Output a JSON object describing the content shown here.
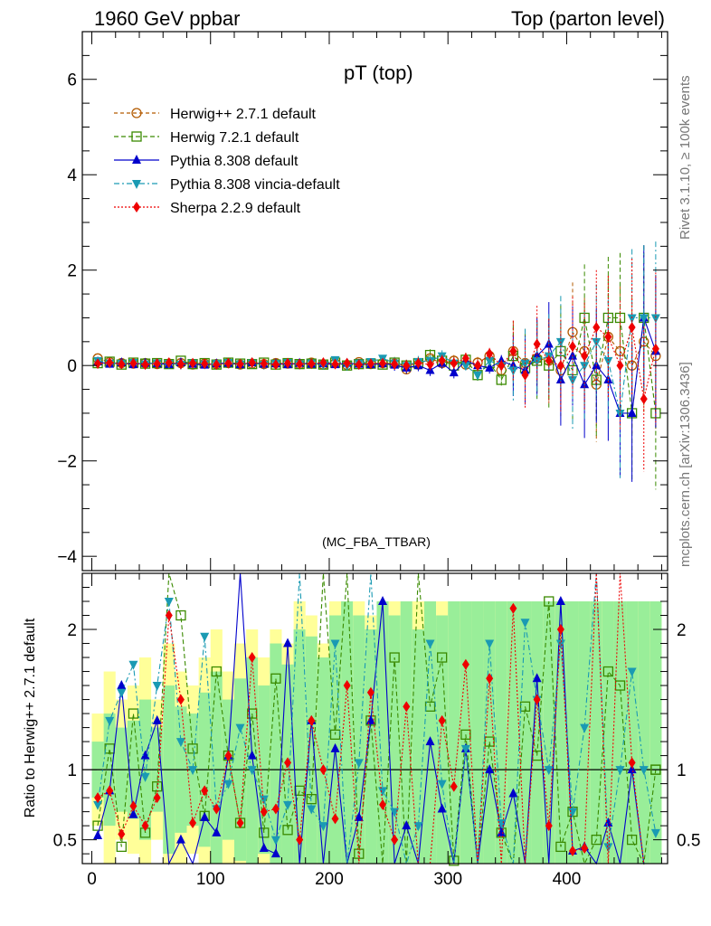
{
  "header": {
    "left": "1960 GeV ppbar",
    "right": "Top (parton level)"
  },
  "side": {
    "rivet": "Rivet 3.1.10, ≥ 100k events",
    "mcplots": "mcplots.cern.ch [arXiv:1306.3436]"
  },
  "chart_data": {
    "type": "line",
    "title": "pT (top)",
    "watermark": "(MC_FBA_TTBAR)",
    "ratio_ylabel": "Ratio to Herwig++ 2.7.1 default",
    "xlim": [
      -8,
      485
    ],
    "ylim_main": [
      -4.3,
      7.0
    ],
    "ylim_ratio": [
      0.33,
      2.4
    ],
    "x_ticks": [
      0,
      100,
      200,
      300,
      400
    ],
    "y_ticks_main": [
      -4,
      -2,
      0,
      2,
      4,
      6
    ],
    "y_ticks_ratio": [
      0.5,
      1,
      2
    ],
    "legend_position": "top-left",
    "series": [
      {
        "name": "Herwig++ 2.7.1 default",
        "color": "#b35a00",
        "marker": "circle-open",
        "dash": "4,3",
        "x": [
          5,
          15,
          25,
          35,
          45,
          55,
          65,
          75,
          85,
          95,
          105,
          115,
          125,
          135,
          145,
          155,
          165,
          175,
          185,
          195,
          205,
          215,
          225,
          235,
          245,
          255,
          265,
          275,
          285,
          295,
          305,
          315,
          325,
          335,
          345,
          355,
          365,
          375,
          385,
          395,
          405,
          415,
          425,
          435,
          445,
          455,
          465,
          475
        ],
        "y": [
          0.15,
          0.07,
          0.05,
          0.04,
          0.05,
          0.03,
          0.04,
          0.05,
          0.02,
          0.04,
          0.03,
          0.05,
          0.02,
          0.04,
          0.03,
          0.05,
          0.04,
          0.03,
          0.06,
          0.02,
          0.05,
          0.01,
          0.07,
          0.03,
          0.05,
          0.04,
          -0.08,
          0.02,
          0.15,
          0.05,
          0.1,
          0.02,
          0.06,
          0.2,
          -0.1,
          0.3,
          0.05,
          0.15,
          0.1,
          -0.1,
          0.7,
          0.3,
          -0.4,
          0.6,
          0.3,
          0.0,
          0.5,
          0.2
        ]
      },
      {
        "name": "Herwig 7.2.1 default",
        "color": "#3a8a00",
        "marker": "square-open",
        "dash": "5,3",
        "x": [
          5,
          15,
          25,
          35,
          45,
          55,
          65,
          75,
          85,
          95,
          105,
          115,
          125,
          135,
          145,
          155,
          165,
          175,
          185,
          195,
          205,
          215,
          225,
          235,
          245,
          255,
          265,
          275,
          285,
          295,
          305,
          315,
          325,
          335,
          345,
          355,
          365,
          375,
          385,
          395,
          405,
          415,
          425,
          435,
          445,
          455,
          465,
          475
        ],
        "y": [
          0.05,
          0.08,
          0.02,
          0.06,
          0.04,
          0.05,
          0.03,
          0.1,
          0.03,
          0.05,
          0.02,
          0.06,
          0.04,
          0.03,
          0.06,
          0.02,
          0.05,
          0.03,
          0.04,
          0.02,
          0.06,
          0.0,
          0.03,
          0.04,
          0.02,
          0.06,
          0.0,
          0.05,
          0.22,
          0.1,
          0.0,
          0.12,
          -0.2,
          0.05,
          -0.3,
          0.2,
          -0.05,
          0.1,
          0.0,
          0.3,
          -0.1,
          1.0,
          -0.3,
          1.0,
          1.0,
          -1.0,
          1.0,
          -1.0
        ]
      },
      {
        "name": "Pythia 8.308 default",
        "color": "#0000cc",
        "marker": "triangle-up",
        "dash": "",
        "x": [
          5,
          15,
          25,
          35,
          45,
          55,
          65,
          75,
          85,
          95,
          105,
          115,
          125,
          135,
          145,
          155,
          165,
          175,
          185,
          195,
          205,
          215,
          225,
          235,
          245,
          255,
          265,
          275,
          285,
          295,
          305,
          315,
          325,
          335,
          345,
          355,
          365,
          375,
          385,
          395,
          405,
          415,
          425,
          435,
          445,
          455,
          465,
          475
        ],
        "y": [
          0.08,
          0.03,
          0.06,
          0.02,
          0.05,
          0.04,
          0.02,
          0.06,
          0.03,
          0.01,
          0.04,
          0.05,
          0.02,
          0.06,
          0.03,
          0.04,
          0.02,
          0.05,
          0.03,
          0.04,
          0.02,
          0.05,
          0.03,
          0.02,
          0.04,
          0.01,
          -0.05,
          0.0,
          -0.1,
          0.05,
          -0.15,
          0.1,
          0.0,
          -0.05,
          0.1,
          0.0,
          -0.1,
          0.2,
          0.45,
          -0.3,
          0.2,
          -0.4,
          0.0,
          -0.3,
          -1.0,
          -1.0,
          1.0,
          0.3
        ]
      },
      {
        "name": "Pythia 8.308 vincia-default",
        "color": "#1a9ab3",
        "marker": "triangle-down",
        "dash": "6,3,2,3",
        "x": [
          5,
          15,
          25,
          35,
          45,
          55,
          65,
          75,
          85,
          95,
          105,
          115,
          125,
          135,
          145,
          155,
          165,
          175,
          185,
          195,
          205,
          215,
          225,
          235,
          245,
          255,
          265,
          275,
          285,
          295,
          305,
          315,
          325,
          335,
          345,
          355,
          365,
          375,
          385,
          395,
          405,
          415,
          425,
          435,
          445,
          455,
          465,
          475
        ],
        "y": [
          0.1,
          0.05,
          0.04,
          0.06,
          0.03,
          0.05,
          0.04,
          0.02,
          0.05,
          0.03,
          0.04,
          0.06,
          0.03,
          0.05,
          0.02,
          0.04,
          0.06,
          0.03,
          0.05,
          0.02,
          0.12,
          0.0,
          0.05,
          0.08,
          0.15,
          0.05,
          0.0,
          0.08,
          0.1,
          0.2,
          0.05,
          0.0,
          -0.2,
          0.1,
          0.0,
          -0.1,
          0.05,
          0.1,
          0.2,
          0.5,
          -0.3,
          0.0,
          0.5,
          0.1,
          -1.0,
          1.0,
          1.0,
          1.0
        ]
      },
      {
        "name": "Sherpa 2.2.9 default",
        "color": "#ee0000",
        "marker": "diamond",
        "dash": "2,2",
        "x": [
          5,
          15,
          25,
          35,
          45,
          55,
          65,
          75,
          85,
          95,
          105,
          115,
          125,
          135,
          145,
          155,
          165,
          175,
          185,
          195,
          205,
          215,
          225,
          235,
          245,
          255,
          265,
          275,
          285,
          295,
          305,
          315,
          325,
          335,
          345,
          355,
          365,
          375,
          385,
          395,
          405,
          415,
          425,
          435,
          445,
          455,
          465,
          475
        ],
        "y": [
          0.04,
          0.06,
          0.03,
          0.05,
          0.02,
          0.04,
          0.06,
          0.03,
          0.05,
          0.04,
          0.02,
          0.05,
          0.03,
          0.06,
          0.04,
          0.02,
          0.05,
          0.03,
          0.04,
          0.06,
          0.03,
          0.05,
          0.02,
          0.04,
          0.05,
          0.03,
          0.0,
          0.05,
          0.02,
          0.1,
          0.05,
          0.15,
          0.0,
          0.25,
          0.0,
          0.3,
          -0.2,
          0.45,
          0.1,
          0.0,
          0.4,
          0.2,
          0.8,
          0.6,
          0.0,
          0.8,
          -0.7,
          0.35
        ]
      }
    ],
    "ratio": [
      {
        "name": "Herwig++ 2.7.1 default",
        "y": [
          1,
          1,
          1,
          1,
          1,
          1,
          1,
          1,
          1,
          1,
          1,
          1,
          1,
          1,
          1,
          1,
          1,
          1,
          1,
          1,
          1,
          1,
          1,
          1,
          1,
          1,
          1,
          1,
          1,
          1,
          1,
          1,
          1,
          1,
          1,
          1,
          1,
          1,
          1,
          1,
          1,
          1,
          1,
          1,
          1,
          1,
          1,
          1
        ]
      },
      {
        "name": "Herwig 7.2.1 default",
        "y": [
          0.6,
          1.15,
          0.45,
          1.4,
          0.55,
          0.88,
          2.4,
          2.1,
          1.15,
          0.67,
          1.7,
          1.1,
          0.62,
          1.4,
          0.55,
          1.65,
          0.57,
          0.85,
          0.79,
          2.4,
          1.25,
          2.4,
          0.4,
          1.35,
          0.3,
          1.8,
          0.3,
          2.4,
          1.45,
          1.8,
          0.35,
          1.25,
          0.3,
          1.2,
          0.55,
          0.3,
          1.45,
          1.1,
          2.2,
          0.45,
          0.7,
          0.3,
          0.5,
          1.7,
          1.6,
          0.5,
          0.3,
          1.0
        ]
      },
      {
        "name": "Pythia 8.308 default",
        "y": [
          0.53,
          0.85,
          1.6,
          0.68,
          1.1,
          1.35,
          0.2,
          0.5,
          0.3,
          0.66,
          0.55,
          1.1,
          2.4,
          1.1,
          0.44,
          0.4,
          1.9,
          0.3,
          1.35,
          0.3,
          1.15,
          0.3,
          0.66,
          1.35,
          2.2,
          0.3,
          0.6,
          0.3,
          1.2,
          0.72,
          0.3,
          1.15,
          0.3,
          1.0,
          0.55,
          0.83,
          0.3,
          1.65,
          0.3,
          2.2,
          0.42,
          0.45,
          0.3,
          0.62,
          0.3,
          1.0,
          0.3,
          0.3
        ]
      },
      {
        "name": "Pythia 8.308 vincia-default",
        "y": [
          0.75,
          1.35,
          1.55,
          1.75,
          0.95,
          1.6,
          2.2,
          1.2,
          1.0,
          1.95,
          0.72,
          0.9,
          1.3,
          1.0,
          0.79,
          0.5,
          0.75,
          2.4,
          0.72,
          0.6,
          1.9,
          0.3,
          1.05,
          2.4,
          0.85,
          0.7,
          0.3,
          0.6,
          1.9,
          0.9,
          0.3,
          1.15,
          0.3,
          1.9,
          0.62,
          0.3,
          2.05,
          1.5,
          1.0,
          1.9,
          0.7,
          1.3,
          2.4,
          0.45,
          1.0,
          1.7,
          1.0,
          0.55
        ]
      },
      {
        "name": "Sherpa 2.2.9 default",
        "y": [
          0.8,
          0.85,
          0.54,
          0.74,
          0.6,
          0.8,
          2.1,
          1.5,
          0.62,
          0.85,
          0.72,
          1.1,
          0.62,
          1.8,
          0.7,
          0.72,
          1.05,
          0.5,
          1.35,
          1.0,
          0.65,
          1.6,
          0.3,
          1.55,
          0.75,
          0.5,
          1.45,
          0.3,
          0.3,
          1.35,
          0.88,
          1.75,
          0.3,
          1.65,
          0.3,
          2.15,
          0.3,
          1.5,
          0.6,
          2.0,
          0.42,
          0.44,
          2.4,
          0.3,
          2.4,
          1.05,
          0.3,
          0.3
        ]
      }
    ],
    "ratio_bands": {
      "yellow_halfwidth": [
        0.4,
        0.7,
        0.5,
        0.6,
        0.8,
        0.5,
        0.9,
        0.7,
        0.6,
        0.8,
        1.0,
        0.7,
        0.9,
        1.0,
        0.8,
        1.0,
        0.9,
        1.2,
        1.1,
        0.9,
        1.2,
        1.2,
        1.2,
        1.1,
        1.2,
        1.2,
        1.2,
        1.2,
        1.2,
        1.2,
        1.2,
        1.2,
        1.2,
        1.2,
        1.2,
        1.2,
        1.2,
        1.2,
        1.2,
        1.2,
        1.2,
        1.2,
        1.2,
        1.2,
        1.2,
        1.2,
        1.2,
        1.2
      ],
      "green_halfwidth": [
        0.2,
        0.4,
        0.3,
        0.35,
        0.5,
        0.3,
        0.6,
        0.45,
        0.4,
        0.55,
        0.7,
        0.5,
        0.65,
        0.8,
        0.6,
        0.9,
        0.75,
        1.0,
        0.95,
        0.8,
        1.1,
        1.2,
        1.1,
        1.0,
        1.2,
        1.1,
        1.2,
        1.0,
        1.2,
        1.1,
        1.2,
        1.2,
        1.2,
        1.2,
        1.2,
        1.2,
        1.2,
        1.2,
        1.2,
        1.2,
        1.2,
        1.2,
        1.2,
        1.2,
        1.2,
        1.2,
        1.2,
        1.2
      ]
    }
  }
}
